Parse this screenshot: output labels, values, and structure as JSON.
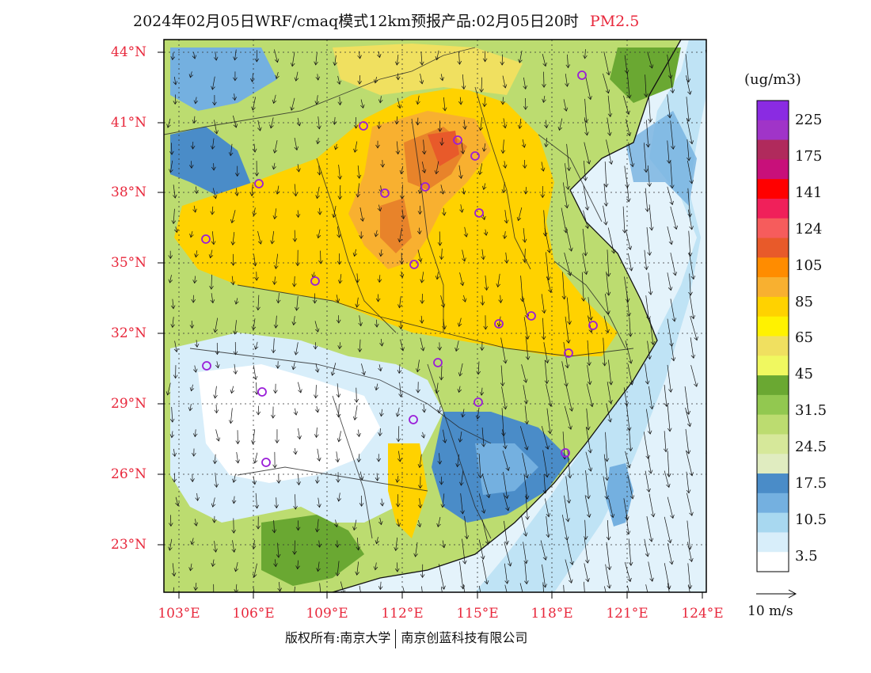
{
  "title": {
    "text": "2024年02月05日WRF/cmaq模式12km预报产品:02月05日20时",
    "variable": "PM2.5"
  },
  "axes": {
    "lat_labels": [
      "44°N",
      "41°N",
      "38°N",
      "35°N",
      "32°N",
      "29°N",
      "26°N",
      "23°N"
    ],
    "lon_labels": [
      "103°E",
      "106°E",
      "109°E",
      "112°E",
      "115°E",
      "118°E",
      "121°E",
      "124°E"
    ]
  },
  "colorbar": {
    "units": "(ug/m3)",
    "labels": [
      "225",
      "175",
      "141",
      "124",
      "105",
      "85",
      "65",
      "45",
      "31.5",
      "24.5",
      "17.5",
      "10.5",
      "3.5"
    ],
    "colors": [
      "#8a2be2",
      "#a034c8",
      "#b02a5c",
      "#c8107a",
      "#ff0000",
      "#f0205a",
      "#f65c5c",
      "#e85a2a",
      "#ff8c00",
      "#f8b030",
      "#ffd200",
      "#fff200",
      "#f0e060",
      "#f0f860",
      "#6aa832",
      "#92c850",
      "#bcdc70",
      "#d6e89a",
      "#e0ecc0",
      "#4a8cc8",
      "#74b0e0",
      "#a8d8f0",
      "#d8eefa",
      "#ffffff"
    ]
  },
  "wind_reference": "10 m/s",
  "cities": 22,
  "footer": {
    "left": "版权所有:南京大学",
    "right": "南京创蓝科技有限公司"
  }
}
